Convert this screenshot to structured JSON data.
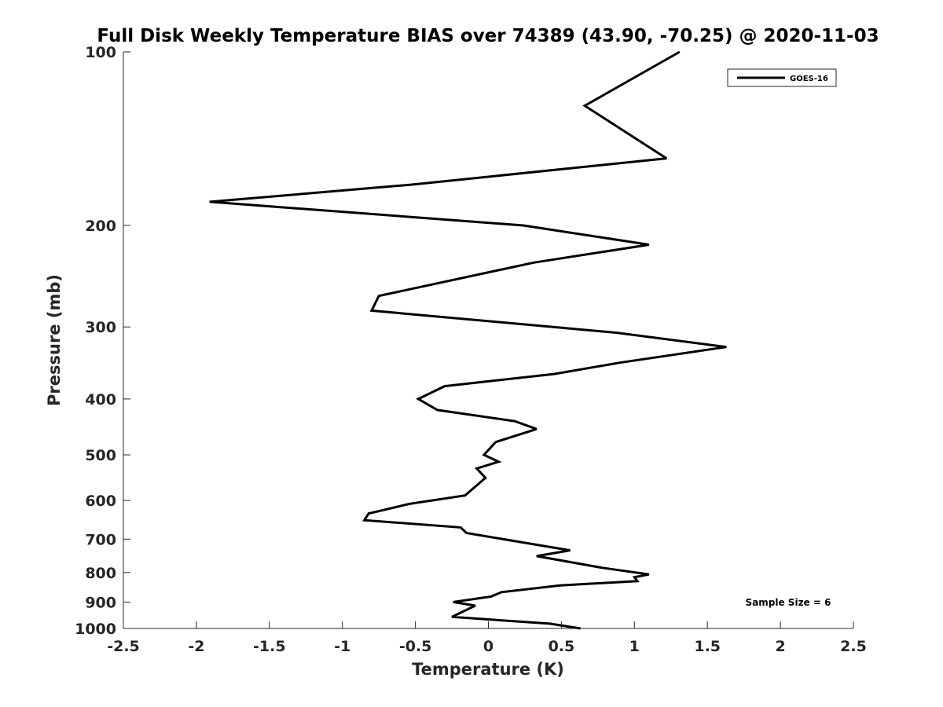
{
  "chart_data": {
    "type": "line",
    "title": "Full Disk Weekly Temperature BIAS over 74389 (43.90, -70.25) @ 2020-11-03",
    "xlabel": "Temperature (K)",
    "ylabel": "Pressure (mb)",
    "xlim": [
      -2.5,
      2.5
    ],
    "ylim": [
      1000,
      100
    ],
    "y_scale": "log",
    "y_reversed": true,
    "x_ticks": [
      "-2.5",
      "-2",
      "-1.5",
      "-1",
      "-0.5",
      "0",
      "0.5",
      "1",
      "1.5",
      "2",
      "2.5"
    ],
    "y_ticks": [
      "100",
      "200",
      "300",
      "400",
      "500",
      "600",
      "700",
      "800",
      "900",
      "1000"
    ],
    "grid": false,
    "legend_position": "top-right",
    "annotation": "Sample Size = 6",
    "series": [
      {
        "name": "GOES-16",
        "color": "#000000",
        "x": [
          1.31,
          0.66,
          1.22,
          -0.53,
          -1.91,
          0.24,
          1.1,
          0.31,
          -0.75,
          -0.8,
          0.88,
          1.63,
          0.9,
          0.45,
          -0.3,
          -0.48,
          -0.35,
          0.18,
          0.33,
          0.05,
          -0.03,
          0.07,
          -0.08,
          -0.02,
          -0.16,
          -0.54,
          -0.82,
          -0.85,
          -0.19,
          -0.15,
          0.56,
          0.33,
          0.78,
          1.1,
          1.0,
          1.02,
          0.49,
          0.09,
          0.02,
          -0.24,
          -0.09,
          -0.25,
          0.42,
          0.63
        ],
        "y": [
          100,
          124,
          153,
          170,
          182,
          200,
          216,
          232,
          265,
          281,
          307,
          325,
          346,
          362,
          380,
          400,
          418,
          437,
          451,
          475,
          500,
          514,
          528,
          548,
          588,
          608,
          632,
          649,
          668,
          683,
          732,
          749,
          785,
          806,
          815,
          828,
          842,
          865,
          880,
          900,
          913,
          955,
          981,
          1000
        ]
      }
    ]
  }
}
